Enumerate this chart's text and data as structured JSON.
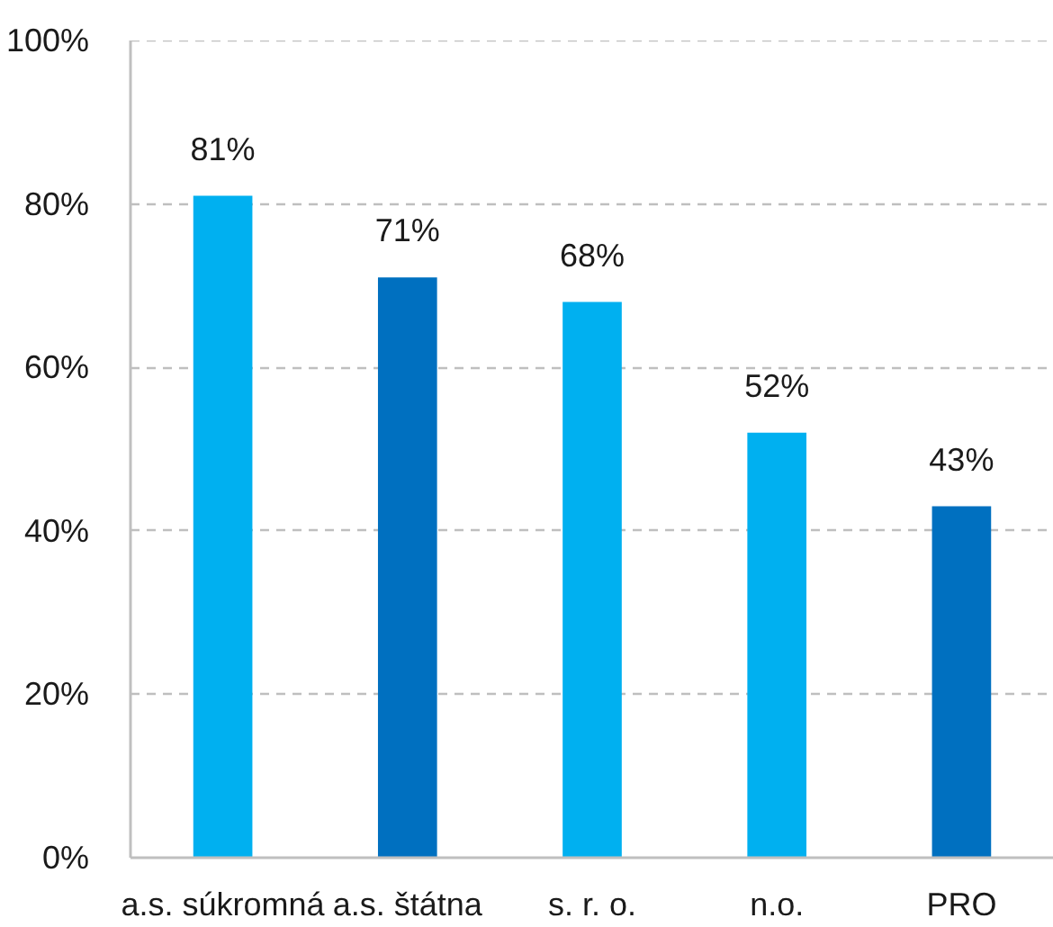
{
  "chart_data": {
    "type": "bar",
    "categories": [
      "a.s. súkromná",
      "a.s. štátna",
      "s. r. o.",
      "n.o.",
      "PRO"
    ],
    "values": [
      81,
      71,
      68,
      52,
      43
    ],
    "colors": [
      "#00b0f0",
      "#0070c0",
      "#00b0f0",
      "#00b0f0",
      "#0070c0"
    ],
    "value_labels": [
      "81%",
      "71%",
      "68%",
      "52%",
      "43%"
    ],
    "ylim": [
      0,
      100
    ],
    "yticks": [
      {
        "value": 0,
        "label": "0%"
      },
      {
        "value": 20,
        "label": "20%"
      },
      {
        "value": 40,
        "label": "40%"
      },
      {
        "value": 60,
        "label": "60%"
      },
      {
        "value": 80,
        "label": "80%"
      },
      {
        "value": 100,
        "label": "100%"
      }
    ],
    "grid": "y"
  }
}
